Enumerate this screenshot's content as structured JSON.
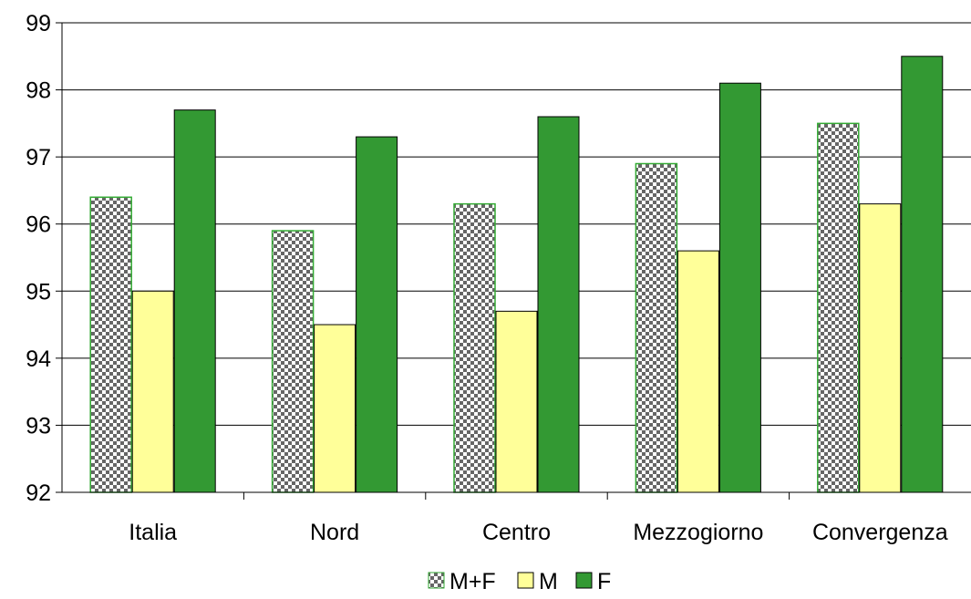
{
  "chart_data": {
    "type": "bar",
    "categories": [
      "Italia",
      "Nord",
      "Centro",
      "Mezzogiorno",
      "Convergenza"
    ],
    "series": [
      {
        "name": "M+F",
        "values": [
          96.4,
          95.9,
          96.3,
          96.9,
          97.5
        ],
        "pattern": "checker"
      },
      {
        "name": "M",
        "values": [
          95.0,
          94.5,
          94.7,
          95.6,
          96.3
        ],
        "color": "#ffff99"
      },
      {
        "name": "F",
        "values": [
          97.7,
          97.3,
          97.6,
          98.1,
          98.5
        ],
        "color": "#339933"
      }
    ],
    "ylim": [
      92,
      99
    ],
    "yticks": [
      "92",
      "93",
      "94",
      "95",
      "96",
      "97",
      "98",
      "99"
    ],
    "grid": true,
    "legend_position": "bottom-center",
    "colors": {
      "checker_dark": "#666666",
      "checker_light": "#ffffff",
      "checker_border": "#33aa33",
      "grid": "#000000"
    }
  }
}
